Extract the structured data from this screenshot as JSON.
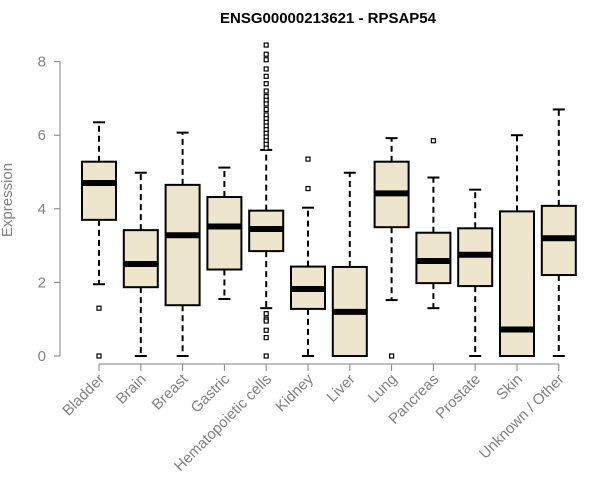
{
  "chart_data": {
    "type": "box",
    "title": "ENSG00000213621 - RPSAP54",
    "xlabel": "",
    "ylabel": "Expression",
    "ylim": [
      0,
      8.6
    ],
    "yticks": [
      0,
      2,
      4,
      6,
      8
    ],
    "colors": {
      "box_fill": "#ede5cc",
      "stroke": "#000000",
      "axis": "#808080"
    },
    "categories": [
      "Bladder",
      "Brain",
      "Breast",
      "Gastric",
      "Hematopoietic cells",
      "Kidney",
      "Liver",
      "Lung",
      "Pancreas",
      "Prostate",
      "Skin",
      "Unknown / Other"
    ],
    "boxes": [
      {
        "whisker_low": 1.95,
        "q1": 3.7,
        "median": 4.7,
        "q3": 5.28,
        "whisker_high": 6.35,
        "outliers": [
          1.3,
          0.0
        ]
      },
      {
        "whisker_low": 0.0,
        "q1": 1.87,
        "median": 2.5,
        "q3": 3.42,
        "whisker_high": 4.98,
        "outliers": []
      },
      {
        "whisker_low": 0.0,
        "q1": 1.38,
        "median": 3.28,
        "q3": 4.65,
        "whisker_high": 6.07,
        "outliers": []
      },
      {
        "whisker_low": 1.55,
        "q1": 2.35,
        "median": 3.52,
        "q3": 4.32,
        "whisker_high": 5.12,
        "outliers": []
      },
      {
        "whisker_low": 1.3,
        "q1": 2.85,
        "median": 3.45,
        "q3": 3.95,
        "whisker_high": 5.6,
        "outliers": [
          8.45,
          8.2,
          8.05,
          7.8,
          7.6,
          7.4,
          7.2,
          7.05,
          6.95,
          6.85,
          6.7,
          6.55,
          6.45,
          6.35,
          6.25,
          6.15,
          6.05,
          5.95,
          5.85,
          5.75,
          5.65,
          1.15,
          1.0,
          0.95,
          0.7,
          0.5,
          0.0
        ]
      },
      {
        "whisker_low": 0.0,
        "q1": 1.28,
        "median": 1.82,
        "q3": 2.43,
        "whisker_high": 4.03,
        "outliers": [
          5.35,
          4.55
        ]
      },
      {
        "whisker_low": 0.0,
        "q1": 0.0,
        "median": 1.2,
        "q3": 2.42,
        "whisker_high": 4.98,
        "outliers": []
      },
      {
        "whisker_low": 1.52,
        "q1": 3.5,
        "median": 4.42,
        "q3": 5.28,
        "whisker_high": 5.92,
        "outliers": [
          0.0
        ]
      },
      {
        "whisker_low": 1.3,
        "q1": 1.98,
        "median": 2.58,
        "q3": 3.35,
        "whisker_high": 4.85,
        "outliers": [
          5.85
        ]
      },
      {
        "whisker_low": 0.0,
        "q1": 1.9,
        "median": 2.75,
        "q3": 3.47,
        "whisker_high": 4.52,
        "outliers": []
      },
      {
        "whisker_low": 0.0,
        "q1": 0.0,
        "median": 0.72,
        "q3": 3.93,
        "whisker_high": 6.0,
        "outliers": []
      },
      {
        "whisker_low": 0.0,
        "q1": 2.2,
        "median": 3.2,
        "q3": 4.08,
        "whisker_high": 6.7,
        "outliers": []
      }
    ]
  }
}
